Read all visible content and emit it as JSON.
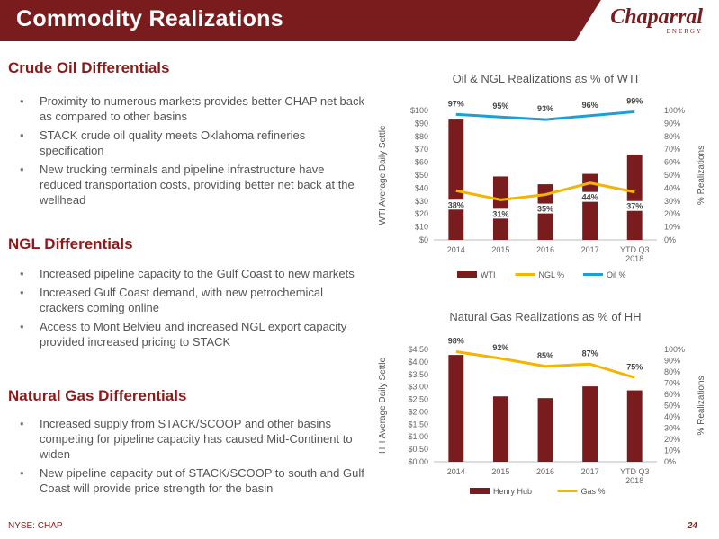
{
  "header": {
    "title": "Commodity Realizations",
    "logo_text": "Chaparral",
    "logo_sub": "ENERGY"
  },
  "sections": [
    {
      "heading": "Crude Oil Differentials",
      "bullets": [
        "Proximity to numerous markets provides better CHAP net back as compared to other basins",
        "STACK crude oil quality meets Oklahoma refineries specification",
        "New trucking terminals and pipeline infrastructure have reduced transportation costs, providing better net back at the wellhead"
      ]
    },
    {
      "heading": "NGL Differentials",
      "bullets": [
        "Increased pipeline capacity to the Gulf Coast to new markets",
        "Increased Gulf Coast demand, with new petrochemical crackers coming online",
        "Access to Mont Belvieu and increased NGL export capacity provided increased pricing to STACK"
      ]
    },
    {
      "heading": "Natural Gas Differentials",
      "bullets": [
        "Increased supply from STACK/SCOOP and other basins competing for pipeline capacity has caused Mid-Continent to widen",
        "New pipeline capacity out of STACK/SCOOP to south and Gulf Coast will provide price strength for the basin"
      ]
    }
  ],
  "footer": {
    "ticker": "NYSE: CHAP",
    "page": "24"
  },
  "colors": {
    "brand": "#7a1c1e",
    "bar": "#7a1c1e",
    "yellow": "#f5b400",
    "blue": "#1aa0d8"
  },
  "chart_data": [
    {
      "type": "bar",
      "title": "Oil & NGL Realizations as % of WTI",
      "categories": [
        "2014",
        "2015",
        "2016",
        "2017",
        "YTD Q3 2018"
      ],
      "ylabel": "WTI Average Daily Settle",
      "y2label": "% Realizations",
      "ylim": [
        0,
        100
      ],
      "y2lim": [
        0,
        100
      ],
      "yticks": [
        "$0",
        "$10",
        "$20",
        "$30",
        "$40",
        "$50",
        "$60",
        "$70",
        "$80",
        "$90",
        "$100"
      ],
      "y2ticks": [
        "0%",
        "10%",
        "20%",
        "30%",
        "40%",
        "50%",
        "60%",
        "70%",
        "80%",
        "90%",
        "100%"
      ],
      "series": [
        {
          "name": "WTI",
          "kind": "bar",
          "axis": "left",
          "values": [
            93,
            49,
            43,
            51,
            66
          ]
        },
        {
          "name": "NGL %",
          "kind": "line",
          "axis": "right",
          "values": [
            38,
            31,
            35,
            44,
            37
          ],
          "labels": [
            "38%",
            "31%",
            "35%",
            "44%",
            "37%"
          ]
        },
        {
          "name": "Oil %",
          "kind": "line",
          "axis": "right",
          "values": [
            97,
            95,
            93,
            96,
            99
          ],
          "labels": [
            "97%",
            "95%",
            "93%",
            "96%",
            "99%"
          ]
        }
      ],
      "legend_position": "bottom"
    },
    {
      "type": "bar",
      "title": "Natural Gas Realizations as % of HH",
      "categories": [
        "2014",
        "2015",
        "2016",
        "2017",
        "YTD Q3 2018"
      ],
      "ylabel": "HH Average Daily Settle",
      "y2label": "% Realizations",
      "ylim": [
        0,
        4.5
      ],
      "y2lim": [
        0,
        100
      ],
      "yticks": [
        "$0.00",
        "$0.50",
        "$1.00",
        "$1.50",
        "$2.00",
        "$2.50",
        "$3.00",
        "$3.50",
        "$4.00",
        "$4.50"
      ],
      "y2ticks": [
        "0%",
        "10%",
        "20%",
        "30%",
        "40%",
        "50%",
        "60%",
        "70%",
        "80%",
        "90%",
        "100%"
      ],
      "series": [
        {
          "name": "Henry Hub",
          "kind": "bar",
          "axis": "left",
          "values": [
            4.28,
            2.62,
            2.55,
            3.02,
            2.86
          ]
        },
        {
          "name": "Gas %",
          "kind": "line",
          "axis": "right",
          "values": [
            98,
            92,
            85,
            87,
            75
          ],
          "labels": [
            "98%",
            "92%",
            "85%",
            "87%",
            "75%"
          ]
        }
      ],
      "legend_position": "bottom"
    }
  ]
}
